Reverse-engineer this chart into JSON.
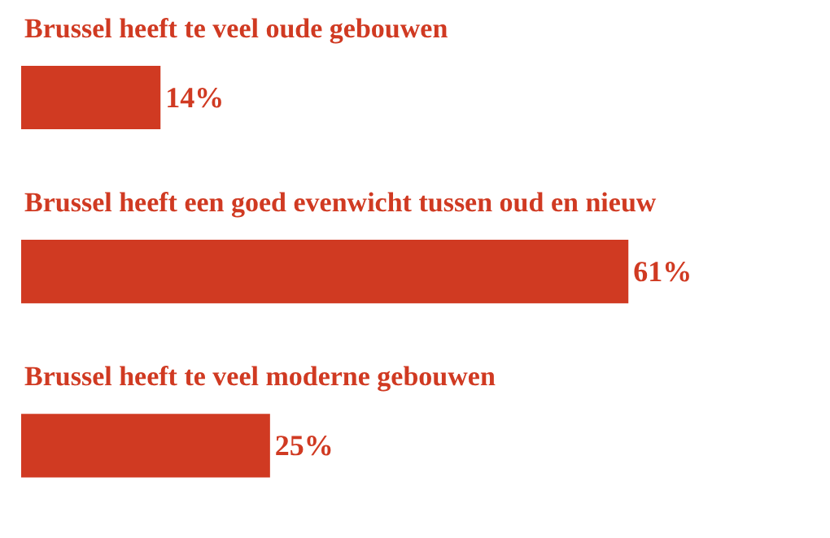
{
  "chart_data": {
    "type": "bar",
    "orientation": "horizontal",
    "categories": [
      "Brussel heeft te veel oude gebouwen",
      "Brussel heeft een goed evenwicht tussen oud en nieuw",
      "Brussel heeft te veel moderne gebouwen"
    ],
    "values": [
      14,
      61,
      25
    ],
    "value_labels": [
      "14%",
      "61%",
      "25%"
    ],
    "color": "#d03a22"
  }
}
